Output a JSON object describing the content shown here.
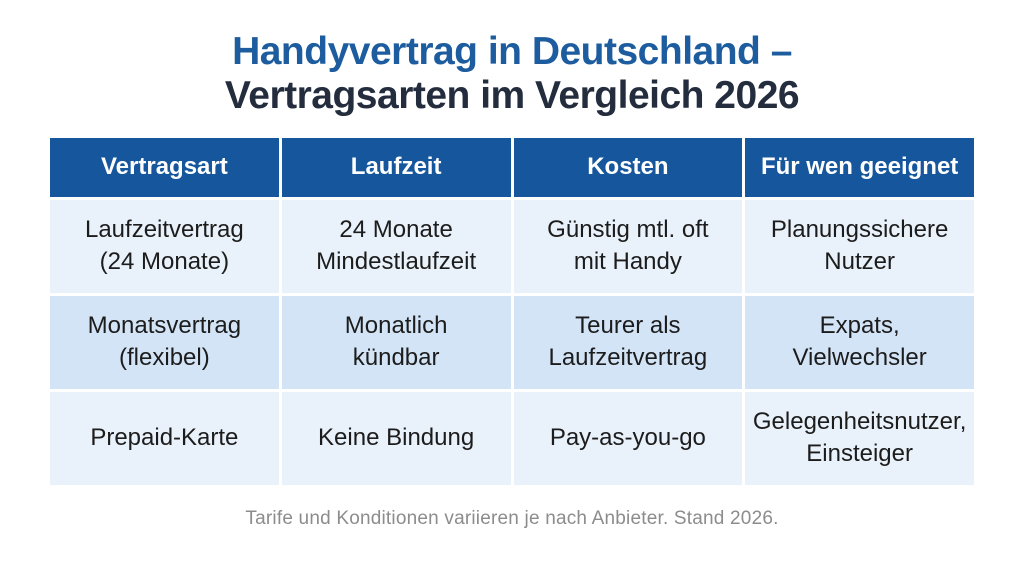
{
  "title": {
    "line1": "Handyvertrag in Deutschland –",
    "line2": "Vertragsarten im Vergleich 2026"
  },
  "table": {
    "headers": [
      "Vertragsart",
      "Laufzeit",
      "Kosten",
      "Für wen geeignet"
    ],
    "rows": [
      {
        "cells": [
          [
            "Laufzeitvertrag",
            "(24 Monate)"
          ],
          [
            "24 Monate",
            "Mindestlaufzeit"
          ],
          [
            "Günstig mtl. oft",
            "mit Handy"
          ],
          [
            "Planungssichere",
            "Nutzer"
          ]
        ]
      },
      {
        "cells": [
          [
            "Monatsvertrag",
            "(flexibel)"
          ],
          [
            "Monatlich",
            "kündbar"
          ],
          [
            "Teurer als",
            "Laufzeitvertrag"
          ],
          [
            "Expats,",
            "Vielwechsler"
          ]
        ]
      },
      {
        "cells": [
          [
            "Prepaid-Karte"
          ],
          [
            "Keine Bindung"
          ],
          [
            "Pay-as-you-go"
          ],
          [
            "Gelegenheitsnutzer,",
            "Einsteiger"
          ]
        ]
      }
    ]
  },
  "footer": {
    "note": "Tarife und Konditionen variieren je nach Anbieter. Stand 2026."
  },
  "colors": {
    "header_bg": "#15569c",
    "header_text": "#ffffff",
    "title_accent": "#1d5c9e",
    "title_dark": "#232d3e",
    "row_light": "#e9f1fa",
    "row_mid": "#d3e4f6",
    "cell_text": "#1c1c1c",
    "footer_text": "#8c8c8c"
  }
}
